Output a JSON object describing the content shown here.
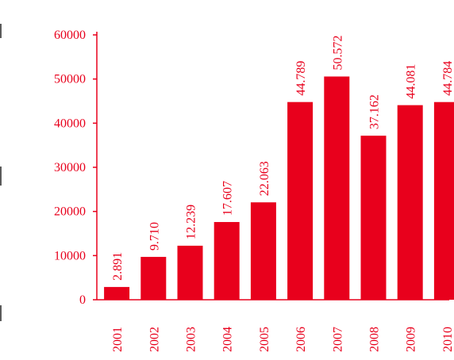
{
  "chart_data": {
    "type": "bar",
    "categories": [
      "2001",
      "2002",
      "2003",
      "2004",
      "2005",
      "2006",
      "2007",
      "2008",
      "2009",
      "2010"
    ],
    "values": [
      2891,
      9710,
      12239,
      17607,
      22063,
      44789,
      50572,
      37162,
      44081,
      44784
    ],
    "data_labels": [
      "2.891",
      "9.710",
      "12.239",
      "17.607",
      "22.063",
      "44.789",
      "50.572",
      "37.162",
      "44.081",
      "44.784"
    ],
    "y_ticks": [
      0,
      10000,
      20000,
      30000,
      40000,
      50000,
      60000
    ],
    "y_tick_labels": [
      "0",
      "10000",
      "20000",
      "30000",
      "40000",
      "50000",
      "60000"
    ],
    "ylim": [
      0,
      60000
    ],
    "title": "",
    "xlabel": "",
    "ylabel": "",
    "grid": false,
    "bar_color": "#e8001c",
    "text_color": "#e8001c"
  }
}
